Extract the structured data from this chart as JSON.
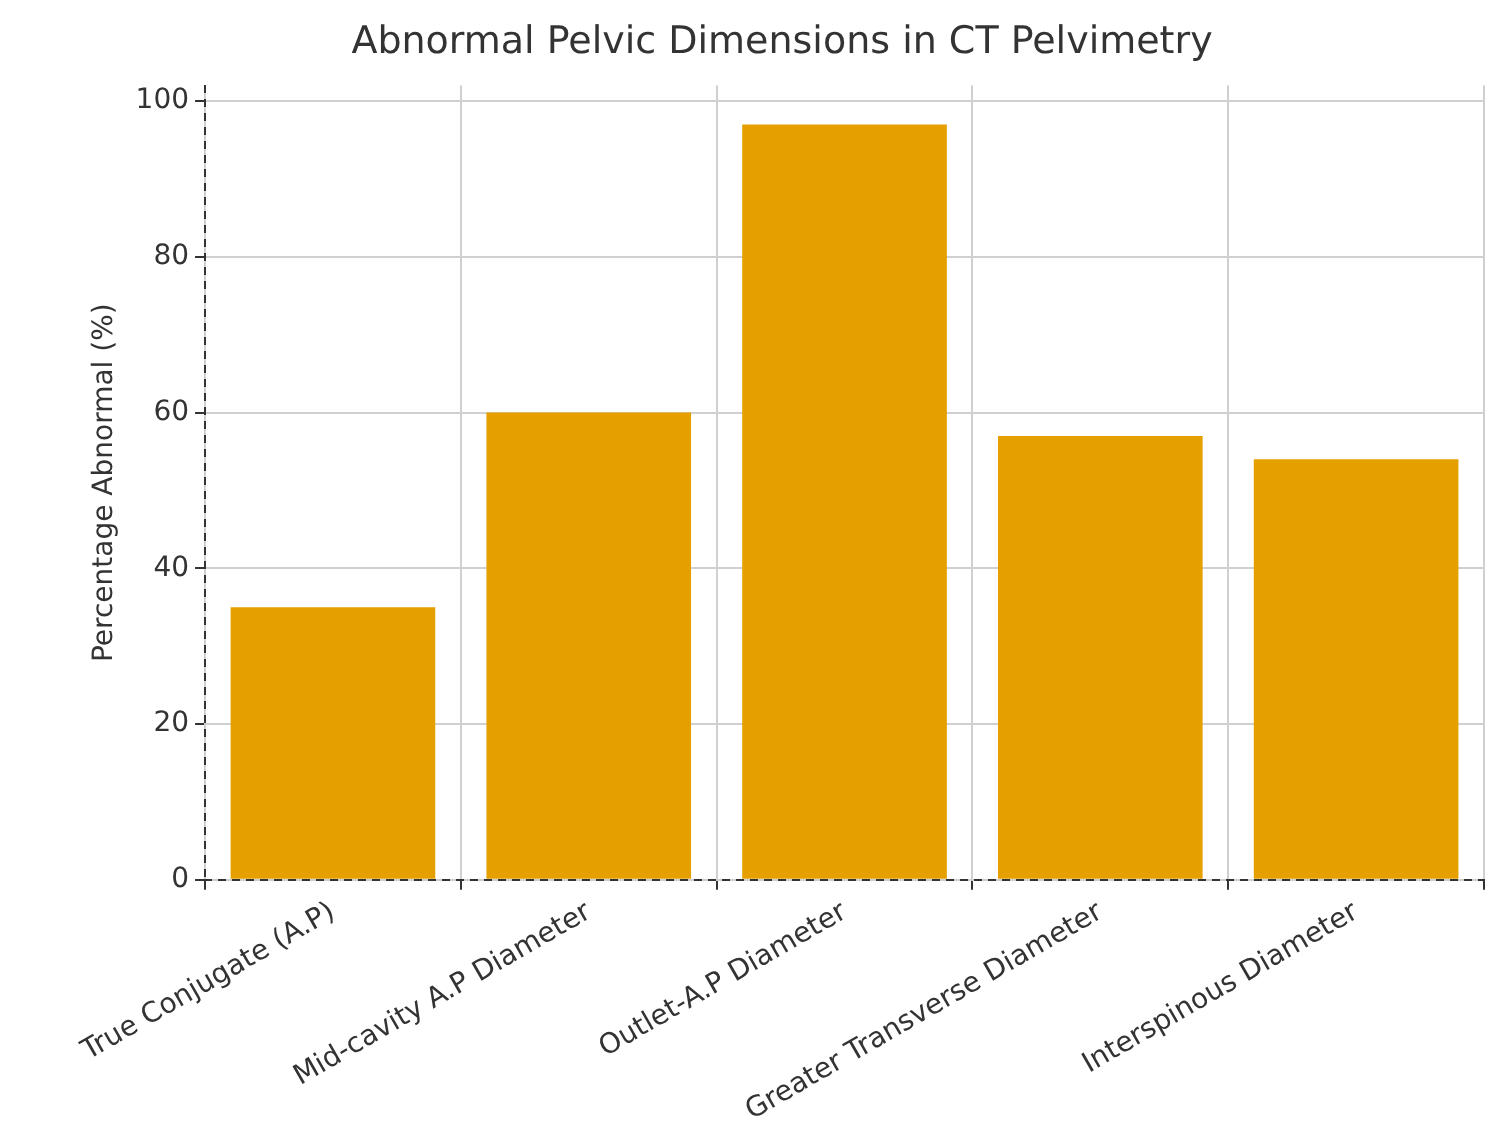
{
  "chart_data": {
    "type": "bar",
    "title": "Abnormal Pelvic Dimensions in CT Pelvimetry",
    "ylabel": "Percentage Abnormal (%)",
    "categories": [
      "True Conjugate (A.P)",
      "Mid-cavity A.P Diameter",
      "Outlet-A.P Diameter",
      "Greater Transverse Diameter",
      "Interspinous Diameter"
    ],
    "values": [
      35,
      60,
      97,
      57,
      54
    ],
    "color": "#e5a000",
    "ylim": [
      0,
      102
    ],
    "yticks": [
      0,
      20,
      40,
      60,
      80,
      100
    ],
    "grid": true,
    "legend": false
  }
}
